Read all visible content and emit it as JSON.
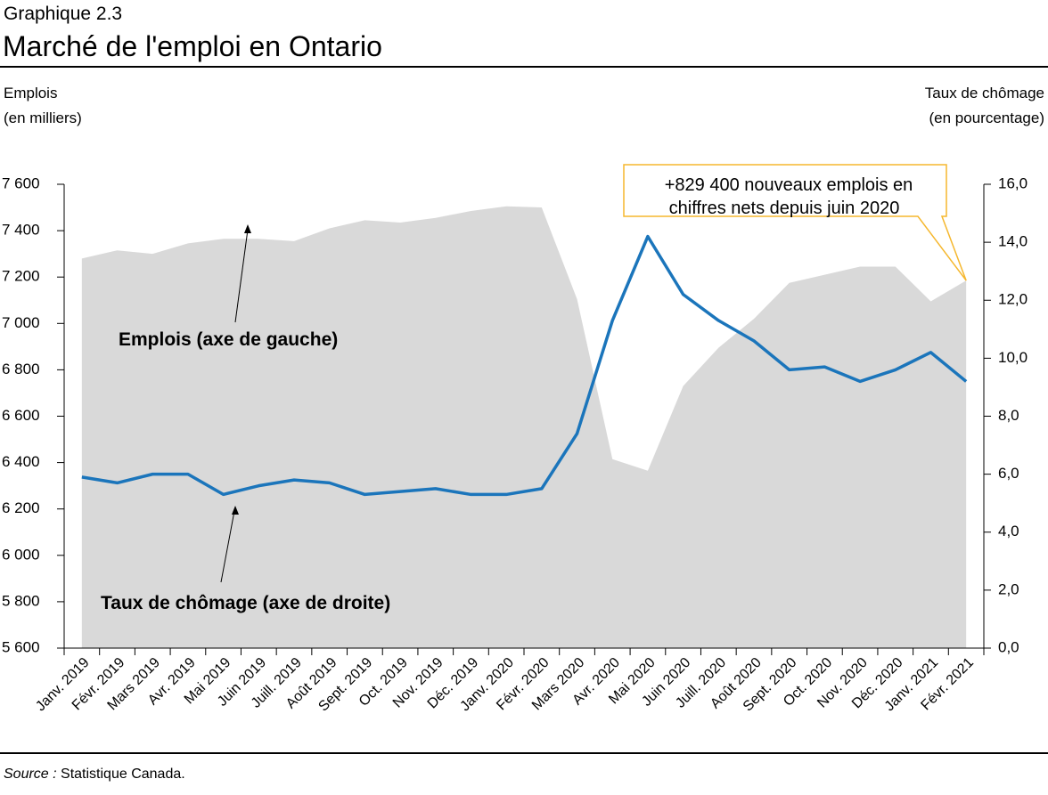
{
  "header": {
    "kicker": "Graphique 2.3",
    "title": "Marché de l'emploi en Ontario"
  },
  "chart_data": {
    "type": "area-line",
    "y_label": [
      "Emplois",
      "(en milliers)"
    ],
    "y2_label": [
      "Taux de chômage",
      "(en pourcentage)"
    ],
    "categories": [
      "Janv. 2019",
      "Févr. 2019",
      "Mars 2019",
      "Avr. 2019",
      "Mai 2019",
      "Juin 2019",
      "Juill. 2019",
      "Août 2019",
      "Sept. 2019",
      "Oct. 2019",
      "Nov. 2019",
      "Déc. 2019",
      "Janv. 2020",
      "Févr. 2020",
      "Mars 2020",
      "Avr. 2020",
      "Mai 2020",
      "Juin 2020",
      "Juill. 2020",
      "Août 2020",
      "Sept. 2020",
      "Oct. 2020",
      "Nov. 2020",
      "Déc. 2020",
      "Janv. 2021",
      "Févr. 2021"
    ],
    "series": [
      {
        "name": "Emplois (axe de gauche)",
        "type": "area",
        "color": "#d9d9d9",
        "values": [
          7280,
          7315,
          7300,
          7345,
          7365,
          7365,
          7355,
          7410,
          7445,
          7435,
          7455,
          7485,
          7505,
          7500,
          7105,
          6415,
          6365,
          6730,
          6895,
          7020,
          7175,
          7210,
          7245,
          7245,
          7095,
          7185
        ]
      },
      {
        "name": "Taux de chômage (axe de droite)",
        "type": "line",
        "color": "#1b75bb",
        "axis": "y2",
        "values": [
          5.9,
          5.7,
          6.0,
          6.0,
          5.3,
          5.6,
          5.8,
          5.7,
          5.3,
          5.4,
          5.5,
          5.3,
          5.3,
          5.5,
          7.4,
          11.3,
          14.2,
          12.2,
          11.3,
          10.6,
          9.6,
          9.7,
          9.2,
          9.6,
          10.2,
          9.2
        ]
      }
    ],
    "ylim": [
      5600,
      7600
    ],
    "yticks": [
      {
        "value": 5600,
        "label": "5 600"
      },
      {
        "value": 5800,
        "label": "5 800"
      },
      {
        "value": 6000,
        "label": "6 000"
      },
      {
        "value": 6200,
        "label": "6 200"
      },
      {
        "value": 6400,
        "label": "6 400"
      },
      {
        "value": 6600,
        "label": "6 600"
      },
      {
        "value": 6800,
        "label": "6 800"
      },
      {
        "value": 7000,
        "label": "7 000"
      },
      {
        "value": 7200,
        "label": "7 200"
      },
      {
        "value": 7400,
        "label": "7 400"
      },
      {
        "value": 7600,
        "label": "7 600"
      }
    ],
    "y2lim": [
      0,
      16
    ],
    "y2ticks": [
      {
        "value": 0,
        "label": "0,0"
      },
      {
        "value": 2,
        "label": "2,0"
      },
      {
        "value": 4,
        "label": "4,0"
      },
      {
        "value": 6,
        "label": "6,0"
      },
      {
        "value": 8,
        "label": "8,0"
      },
      {
        "value": 10,
        "label": "10,0"
      },
      {
        "value": 12,
        "label": "12,0"
      },
      {
        "value": 14,
        "label": "14,0"
      },
      {
        "value": 16,
        "label": "16,0"
      }
    ],
    "callout": [
      "+829 400 nouveaux emplois en",
      "chiffres nets depuis juin 2020"
    ]
  },
  "source": {
    "label": "Source :",
    "text": " Statistique Canada."
  }
}
